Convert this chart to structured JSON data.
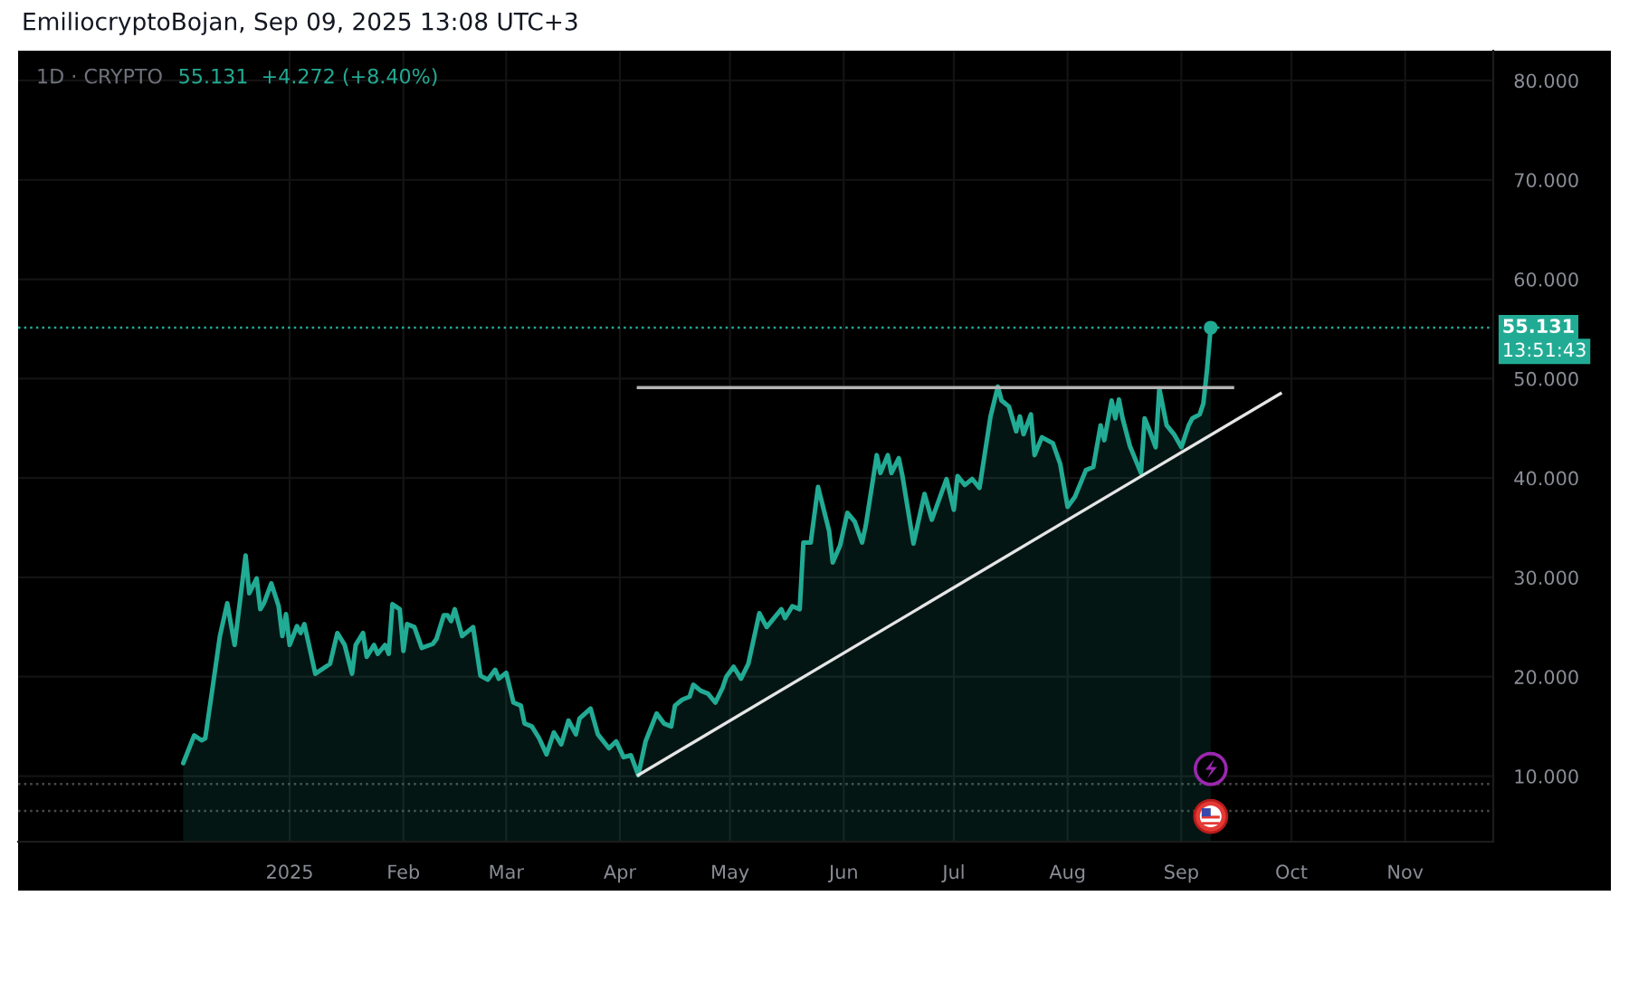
{
  "chart_data": {
    "type": "area",
    "title": "EmiliocryptoBojan, Sep 09, 2025 13:08 UTC+3",
    "annotations": [
      "1D · CRYPTO",
      "55.131  +4.272 (+8.40%)",
      "13:51:43"
    ],
    "x": [
      "2024-12-03",
      "2024-12-06",
      "2024-12-08",
      "2024-12-09",
      "2024-12-11",
      "2024-12-13",
      "2024-12-15",
      "2024-12-17",
      "2024-12-18",
      "2024-12-20",
      "2024-12-21",
      "2024-12-23",
      "2024-12-24",
      "2024-12-25",
      "2024-12-27",
      "2024-12-29",
      "2024-12-30",
      "2024-12-31",
      "2025-01-01",
      "2025-01-03",
      "2025-01-04",
      "2025-01-05",
      "2025-01-08",
      "2025-01-12",
      "2025-01-14",
      "2025-01-16",
      "2025-01-18",
      "2025-01-19",
      "2025-01-21",
      "2025-01-22",
      "2025-01-24",
      "2025-01-25",
      "2025-01-27",
      "2025-01-28",
      "2025-01-29",
      "2025-01-31",
      "2025-02-01",
      "2025-02-02",
      "2025-02-04",
      "2025-02-06",
      "2025-02-09",
      "2025-02-10",
      "2025-02-12",
      "2025-02-13",
      "2025-02-14",
      "2025-02-15",
      "2025-02-17",
      "2025-02-20",
      "2025-02-22",
      "2025-02-24",
      "2025-02-26",
      "2025-02-27",
      "2025-03-01",
      "2025-03-03",
      "2025-03-05",
      "2025-03-06",
      "2025-03-08",
      "2025-03-10",
      "2025-03-12",
      "2025-03-14",
      "2025-03-16",
      "2025-03-18",
      "2025-03-20",
      "2025-03-21",
      "2025-03-24",
      "2025-03-26",
      "2025-03-29",
      "2025-03-31",
      "2025-04-02",
      "2025-04-04",
      "2025-04-06",
      "2025-04-08",
      "2025-04-11",
      "2025-04-13",
      "2025-04-15",
      "2025-04-16",
      "2025-04-18",
      "2025-04-20",
      "2025-04-21",
      "2025-04-23",
      "2025-04-25",
      "2025-04-27",
      "2025-04-29",
      "2025-04-30",
      "2025-05-02",
      "2025-05-04",
      "2025-05-06",
      "2025-05-09",
      "2025-05-11",
      "2025-05-13",
      "2025-05-15",
      "2025-05-16",
      "2025-05-18",
      "2025-05-20",
      "2025-05-21",
      "2025-05-23",
      "2025-05-25",
      "2025-05-28",
      "2025-05-29",
      "2025-05-31",
      "2025-06-02",
      "2025-06-04",
      "2025-06-06",
      "2025-06-07",
      "2025-06-10",
      "2025-06-11",
      "2025-06-13",
      "2025-06-14",
      "2025-06-16",
      "2025-06-17",
      "2025-06-20",
      "2025-06-23",
      "2025-06-25",
      "2025-06-29",
      "2025-07-01",
      "2025-07-02",
      "2025-07-04",
      "2025-07-06",
      "2025-07-08",
      "2025-07-11",
      "2025-07-13",
      "2025-07-14",
      "2025-07-16",
      "2025-07-18",
      "2025-07-19",
      "2025-07-20",
      "2025-07-22",
      "2025-07-23",
      "2025-07-25",
      "2025-07-28",
      "2025-07-30",
      "2025-08-01",
      "2025-08-03",
      "2025-08-06",
      "2025-08-08",
      "2025-08-10",
      "2025-08-11",
      "2025-08-13",
      "2025-08-14",
      "2025-08-15",
      "2025-08-16",
      "2025-08-18",
      "2025-08-20",
      "2025-08-21",
      "2025-08-22",
      "2025-08-23",
      "2025-08-25",
      "2025-08-26",
      "2025-08-28",
      "2025-08-30",
      "2025-09-01",
      "2025-09-03",
      "2025-09-04",
      "2025-09-06",
      "2025-09-07",
      "2025-09-08",
      "2025-09-09"
    ],
    "series": [
      {
        "color": "#22ab94",
        "values": [
          11.3,
          14.1,
          13.6,
          13.8,
          18.9,
          24.1,
          27.4,
          23.2,
          26.2,
          32.2,
          28.4,
          29.9,
          26.8,
          27.4,
          29.4,
          27.1,
          24.1,
          26.3,
          23.2,
          25.1,
          24.4,
          25.3,
          20.3,
          21.3,
          24.4,
          23.2,
          20.3,
          23.2,
          24.4,
          22.0,
          23.2,
          22.3,
          23.2,
          22.3,
          27.3,
          26.8,
          22.6,
          25.3,
          25.0,
          22.9,
          23.3,
          23.8,
          26.2,
          26.2,
          25.6,
          26.8,
          24.1,
          25.0,
          20.1,
          19.7,
          20.7,
          19.8,
          20.4,
          17.4,
          17.1,
          15.3,
          15.0,
          13.8,
          12.2,
          14.4,
          13.2,
          15.6,
          14.2,
          15.8,
          16.8,
          14.2,
          12.8,
          13.5,
          11.9,
          12.1,
          10.1,
          13.5,
          16.3,
          15.3,
          15.0,
          17.1,
          17.7,
          18.0,
          19.2,
          18.6,
          18.3,
          17.4,
          18.9,
          20.0,
          21.0,
          19.8,
          21.3,
          26.4,
          25.0,
          25.9,
          26.8,
          25.9,
          27.1,
          26.8,
          33.5,
          33.5,
          39.1,
          34.7,
          31.5,
          33.2,
          36.5,
          35.6,
          33.5,
          35.2,
          42.3,
          40.5,
          42.3,
          40.5,
          42.0,
          40.2,
          33.4,
          38.4,
          35.8,
          39.9,
          36.8,
          40.2,
          39.3,
          39.9,
          39.0,
          46.2,
          49.2,
          47.8,
          47.2,
          44.7,
          46.2,
          44.4,
          46.4,
          42.3,
          44.1,
          43.5,
          41.4,
          37.1,
          38.1,
          40.8,
          41.1,
          45.3,
          43.8,
          47.8,
          46.0,
          47.9,
          46.0,
          43.2,
          41.4,
          40.5,
          46.0,
          45.1,
          43.1,
          49.0,
          45.3,
          44.4,
          43.1,
          45.3,
          46.0,
          46.4,
          47.5,
          50.9,
          55.131
        ]
      },
      {
        "type": "scatter",
        "color": "#22ab94",
        "marker": "circle",
        "x": [
          "2025-09-09"
        ],
        "values": [
          55.131
        ]
      },
      {
        "type": "line",
        "color": "#b4b4b4",
        "line_style": "solid",
        "x": [
          "2025-04-06",
          "2025-09-15"
        ],
        "values": [
          49.1,
          49.1
        ]
      },
      {
        "type": "line",
        "color": "#e6e6e6",
        "line_style": "solid",
        "x": [
          "2025-04-06",
          "2025-09-28"
        ],
        "values": [
          10.1,
          48.5
        ]
      }
    ],
    "xlim": [
      "2024-10-19",
      "2025-11-25"
    ],
    "xticks": [
      {
        "value": "2025-01-01",
        "label": "2025"
      },
      {
        "value": "2025-02-01",
        "label": "Feb"
      },
      {
        "value": "2025-03-01",
        "label": "Mar"
      },
      {
        "value": "2025-04-01",
        "label": "Apr"
      },
      {
        "value": "2025-05-01",
        "label": "May"
      },
      {
        "value": "2025-06-01",
        "label": "Jun"
      },
      {
        "value": "2025-07-01",
        "label": "Jul"
      },
      {
        "value": "2025-08-01",
        "label": "Aug"
      },
      {
        "value": "2025-09-01",
        "label": "Sep"
      },
      {
        "value": "2025-10-01",
        "label": "Oct"
      },
      {
        "value": "2025-11-01",
        "label": "Nov"
      }
    ],
    "ylim": [
      3.4,
      83.0
    ],
    "yticks": [
      {
        "value": 10,
        "label": "10.000"
      },
      {
        "value": 20,
        "label": "20.000"
      },
      {
        "value": 30,
        "label": "30.000"
      },
      {
        "value": 40,
        "label": "40.000"
      },
      {
        "value": 50,
        "label": "50.000"
      },
      {
        "value": 60,
        "label": "60.000"
      },
      {
        "value": 70,
        "label": "70.000"
      },
      {
        "value": 80,
        "label": "80.000"
      }
    ],
    "grid": true,
    "ref_lines": [
      {
        "axis": "y",
        "value": 55.131,
        "label": "55.131",
        "color": "#22ab94",
        "line_style": "dotted"
      },
      {
        "axis": "y",
        "value": 9.2,
        "color": "#4a4a4a",
        "line_style": "dotted"
      },
      {
        "axis": "y",
        "value": 6.5,
        "color": "#4a4a4a",
        "line_style": "dotted"
      }
    ]
  }
}
